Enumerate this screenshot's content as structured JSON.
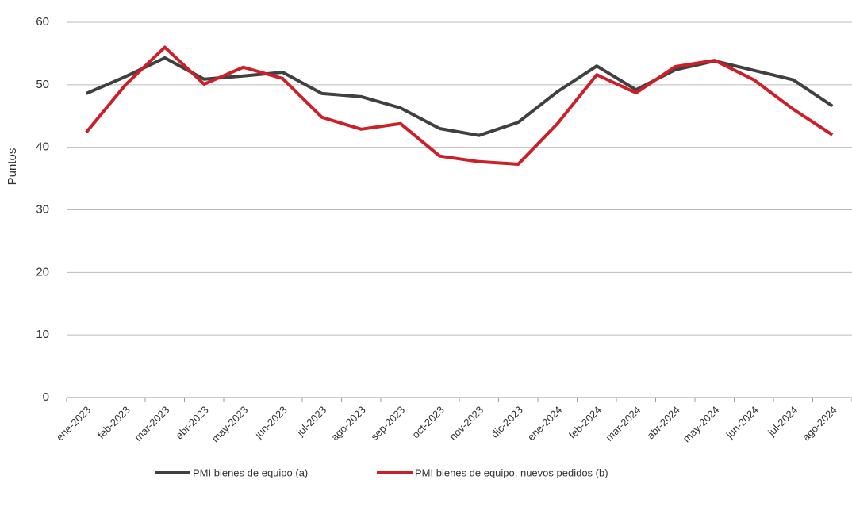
{
  "chart_data": {
    "type": "line",
    "y_label": "Puntos",
    "categories": [
      "ene-2023",
      "feb-2023",
      "mar-2023",
      "abr-2023",
      "may-2023",
      "jun-2023",
      "jul-2023",
      "ago-2023",
      "sep-2023",
      "oct-2023",
      "nov-2023",
      "dic-2023",
      "ene-2024",
      "feb-2024",
      "mar-2024",
      "abr-2024",
      "may-2024",
      "jun-2024",
      "jul-2024",
      "ago-2024"
    ],
    "series": [
      {
        "name": "PMI bienes de equipo (a)",
        "color": "#404040",
        "values": [
          48.6,
          51.3,
          54.3,
          50.9,
          51.4,
          52.0,
          48.6,
          48.1,
          46.3,
          43.0,
          41.9,
          44.0,
          48.9,
          53.0,
          49.2,
          52.4,
          53.8,
          52.3,
          50.8,
          46.6
        ]
      },
      {
        "name": "PMI bienes de equipo, nuevos pedidos (b)",
        "color": "#cc1f27",
        "values": [
          42.4,
          50.0,
          56.0,
          50.1,
          52.8,
          51.0,
          44.8,
          42.9,
          43.8,
          38.6,
          37.7,
          37.3,
          43.8,
          51.6,
          48.7,
          52.9,
          53.9,
          50.8,
          46.1,
          42.0
        ]
      }
    ],
    "ylim": [
      0,
      60
    ],
    "yticks": [
      0,
      10,
      20,
      30,
      40,
      50,
      60
    ],
    "grid": true
  }
}
